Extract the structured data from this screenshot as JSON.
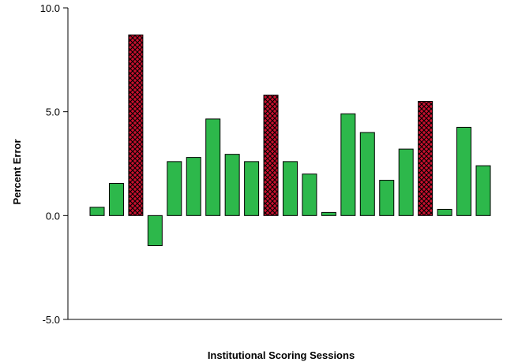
{
  "chart_data": {
    "type": "bar",
    "title": "",
    "xlabel": "Institutional Scoring Sessions",
    "ylabel": "Percent Error",
    "ylim": [
      -5.0,
      10.0
    ],
    "yticks": [
      "10.0",
      "5.0",
      "0.0",
      "-5.0"
    ],
    "ytick_values": [
      10,
      5,
      0,
      -5
    ],
    "grid": false,
    "legend": "none",
    "values": [
      0.4,
      1.55,
      8.7,
      -1.45,
      2.6,
      2.8,
      4.65,
      2.95,
      2.6,
      5.8,
      2.6,
      2.0,
      0.15,
      4.9,
      4.0,
      1.7,
      3.2,
      5.5,
      0.3,
      4.25,
      2.4
    ],
    "highlighted": [
      false,
      false,
      true,
      false,
      false,
      false,
      false,
      false,
      false,
      true,
      false,
      false,
      false,
      false,
      false,
      false,
      false,
      true,
      false,
      false,
      false
    ],
    "colors": {
      "normal_fill": "#2db84b",
      "highlight_fill": "#c8102e",
      "highlight_pattern": "#000000",
      "bar_stroke": "#000000",
      "axis": "#000000"
    }
  }
}
